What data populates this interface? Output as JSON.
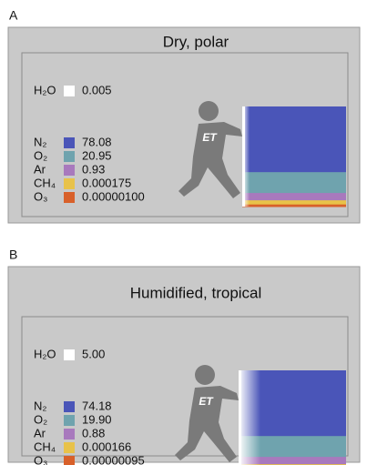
{
  "panels": [
    {
      "label": "A",
      "title": "Dry, polar",
      "shirt_text": "ET",
      "gases": [
        {
          "formula": "H₂O",
          "value": "0.005",
          "color": "#ffffff"
        },
        {
          "formula": "N₂",
          "value": "78.08",
          "color": "#4a55b8"
        },
        {
          "formula": "O₂",
          "value": "20.95",
          "color": "#6fa3ae"
        },
        {
          "formula": "Ar",
          "value": "0.93",
          "color": "#a879bd"
        },
        {
          "formula": "CH₄",
          "value": "0.000175",
          "color": "#e8c24a"
        },
        {
          "formula": "O₃",
          "value": "0.00000100",
          "color": "#d8602a"
        }
      ]
    },
    {
      "label": "B",
      "title": "Humidified, tropical",
      "shirt_text": "ET",
      "gases": [
        {
          "formula": "H₂O",
          "value": "5.00",
          "color": "#ffffff"
        },
        {
          "formula": "N₂",
          "value": "74.18",
          "color": "#4a55b8"
        },
        {
          "formula": "O₂",
          "value": "19.90",
          "color": "#6fa3ae"
        },
        {
          "formula": "Ar",
          "value": "0.88",
          "color": "#a879bd"
        },
        {
          "formula": "CH₄",
          "value": "0.000166",
          "color": "#e8c24a"
        },
        {
          "formula": "O₃",
          "value": "0.00000095",
          "color": "#d8602a"
        }
      ]
    }
  ]
}
